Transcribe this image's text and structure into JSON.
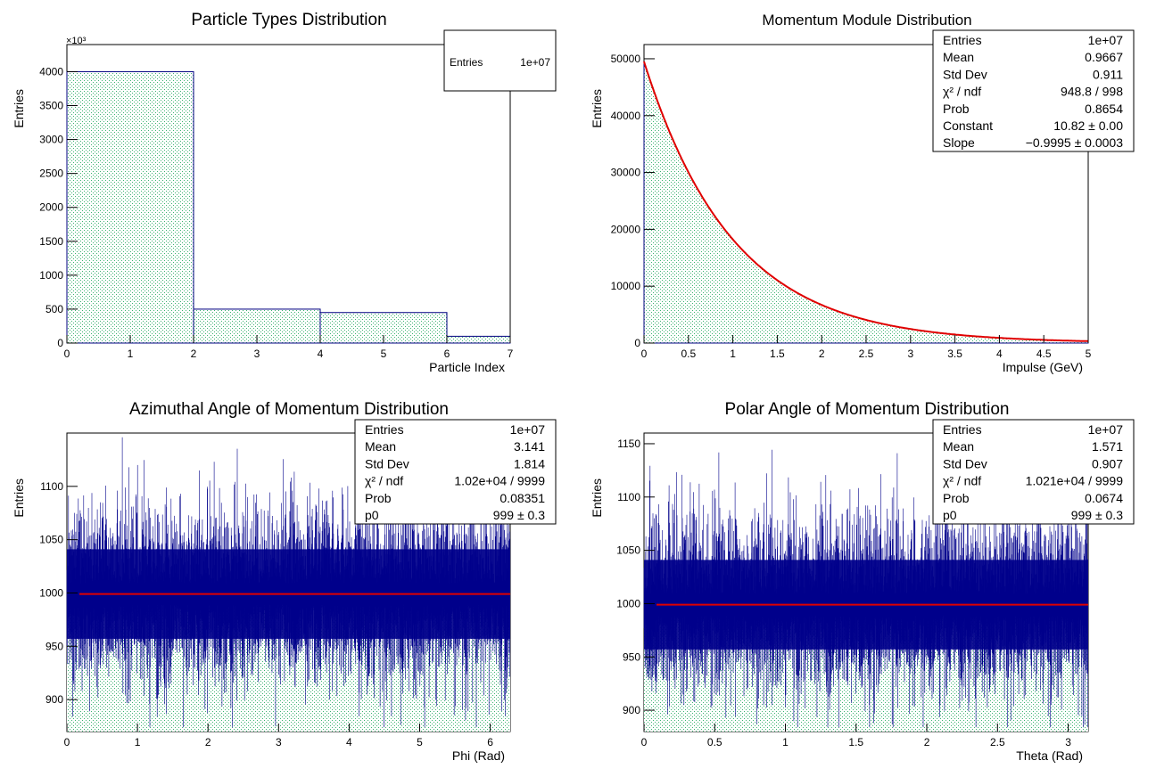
{
  "colors": {
    "fill_hatch": "#3cb371",
    "outline": "#000080",
    "fit": "#e00000",
    "noise": "#00008b"
  },
  "chart_data": [
    {
      "type": "bar",
      "title": "Particle Types Distribution",
      "xlabel": "Particle Index",
      "ylabel": "Entries",
      "exponent": "×10³",
      "xlim": [
        0,
        7
      ],
      "ylim": [
        0,
        4400
      ],
      "xticks": [
        "0",
        "1",
        "2",
        "3",
        "4",
        "5",
        "6",
        "7"
      ],
      "yticks": [
        "0",
        "500",
        "1000",
        "1500",
        "2000",
        "2500",
        "3000",
        "3500",
        "4000"
      ],
      "bins": [
        {
          "from": 0,
          "to": 2,
          "value": 4000
        },
        {
          "from": 2,
          "to": 4,
          "value": 500
        },
        {
          "from": 4,
          "to": 6,
          "value": 450
        },
        {
          "from": 6,
          "to": 7,
          "value": 100
        }
      ],
      "stats": [
        {
          "label": "Entries",
          "value": "1e+07"
        }
      ]
    },
    {
      "type": "area",
      "title": "Momentum Module Distribution",
      "xlabel": "Impulse (GeV)",
      "ylabel": "Entries",
      "xlim": [
        0,
        5
      ],
      "ylim": [
        0,
        52500
      ],
      "xticks": [
        "0",
        "0.5",
        "1",
        "1.5",
        "2",
        "2.5",
        "3",
        "3.5",
        "4",
        "4.5",
        "5"
      ],
      "yticks": [
        "0",
        "10000",
        "20000",
        "30000",
        "40000",
        "50000"
      ],
      "fit": {
        "function": "exponential",
        "constant_log": 10.82,
        "slope": -0.9995
      },
      "stats": [
        {
          "label": "Entries",
          "value": "1e+07"
        },
        {
          "label": "Mean",
          "value": "0.9667"
        },
        {
          "label": "Std Dev",
          "value": "0.911"
        },
        {
          "label": "χ² / ndf",
          "value": "948.8 / 998"
        },
        {
          "label": "Prob",
          "value": "0.8654"
        },
        {
          "label": "Constant",
          "value": "10.82 ± 0.00"
        },
        {
          "label": "Slope",
          "value": "−0.9995 ± 0.0003"
        }
      ]
    },
    {
      "type": "bar",
      "title": "Azimuthal Angle of Momentum Distribution",
      "xlabel": "Phi (Rad)",
      "ylabel": "Entries",
      "xlim": [
        0,
        6.2832
      ],
      "ylim": [
        870,
        1150
      ],
      "xticks": [
        "0",
        "1",
        "2",
        "3",
        "4",
        "5",
        "6"
      ],
      "yticks": [
        "900",
        "950",
        "1000",
        "1050",
        "1100"
      ],
      "mean_level": 999,
      "spread": 32,
      "stats": [
        {
          "label": "Entries",
          "value": "1e+07"
        },
        {
          "label": "Mean",
          "value": "3.141"
        },
        {
          "label": "Std Dev",
          "value": "1.814"
        },
        {
          "label": "χ² / ndf",
          "value": "1.02e+04 / 9999"
        },
        {
          "label": "Prob",
          "value": "0.08351"
        },
        {
          "label": "p0",
          "value": "999 ± 0.3"
        }
      ]
    },
    {
      "type": "bar",
      "title": "Polar Angle of Momentum Distribution",
      "xlabel": "Theta (Rad)",
      "ylabel": "Entries",
      "xlim": [
        0,
        3.1416
      ],
      "ylim": [
        880,
        1160
      ],
      "xticks": [
        "0",
        "0.5",
        "1",
        "1.5",
        "2",
        "2.5",
        "3"
      ],
      "yticks": [
        "900",
        "950",
        "1000",
        "1050",
        "1100",
        "1150"
      ],
      "mean_level": 999,
      "spread": 32,
      "stats": [
        {
          "label": "Entries",
          "value": "1e+07"
        },
        {
          "label": "Mean",
          "value": "1.571"
        },
        {
          "label": "Std Dev",
          "value": "0.907"
        },
        {
          "label": "χ² / ndf",
          "value": "1.021e+04 / 9999"
        },
        {
          "label": "Prob",
          "value": "0.0674"
        },
        {
          "label": "p0",
          "value": "999 ± 0.3"
        }
      ]
    }
  ]
}
